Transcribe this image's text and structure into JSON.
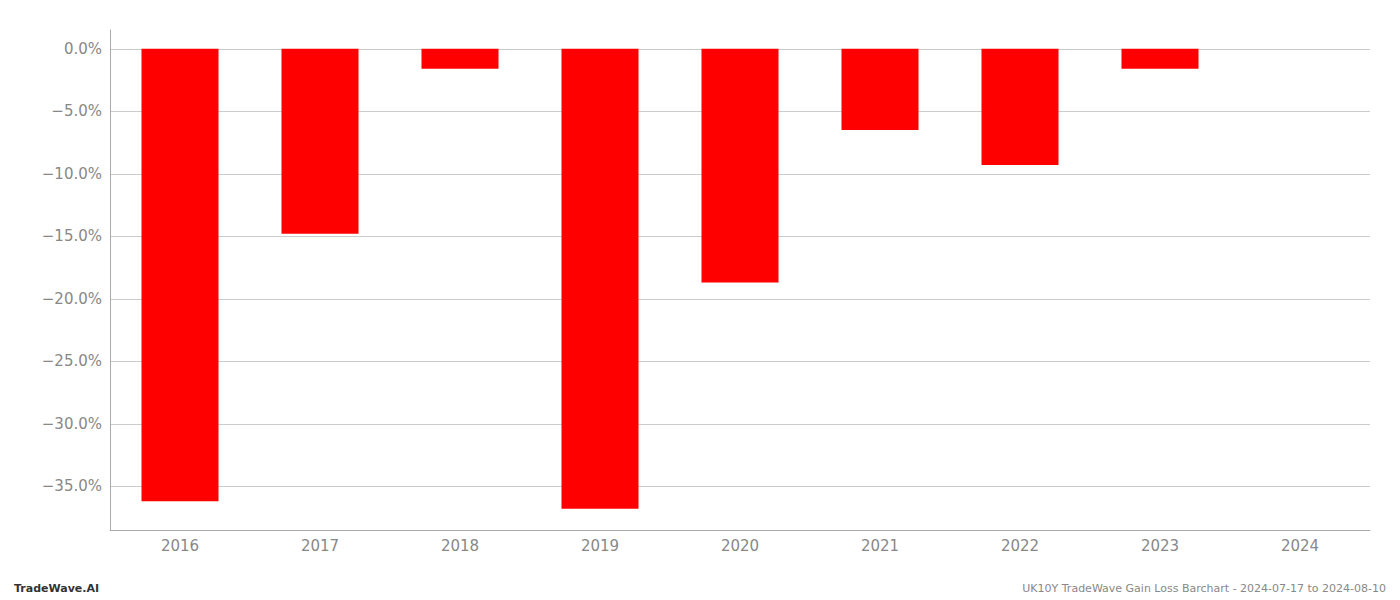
{
  "chart_data": {
    "type": "bar",
    "categories": [
      "2016",
      "2017",
      "2018",
      "2019",
      "2020",
      "2021",
      "2022",
      "2023",
      "2024"
    ],
    "values": [
      -36.2,
      -14.8,
      -1.6,
      -36.8,
      -18.7,
      -6.5,
      -9.3,
      -1.6,
      0.0
    ],
    "color": "#ff0000",
    "ylim": [
      -38.5,
      1.5
    ],
    "yticks": [
      {
        "value": 0.0,
        "label": "0.0%"
      },
      {
        "value": -5.0,
        "label": "−5.0%"
      },
      {
        "value": -10.0,
        "label": "−10.0%"
      },
      {
        "value": -15.0,
        "label": "−15.0%"
      },
      {
        "value": -20.0,
        "label": "−20.0%"
      },
      {
        "value": -25.0,
        "label": "−25.0%"
      },
      {
        "value": -30.0,
        "label": "−30.0%"
      },
      {
        "value": -35.0,
        "label": "−35.0%"
      }
    ],
    "grid": true,
    "annotations": [
      "TradeWave.AI",
      "UK10Y TradeWave Gain Loss Barchart - 2024-07-17 to 2024-08-10"
    ]
  }
}
